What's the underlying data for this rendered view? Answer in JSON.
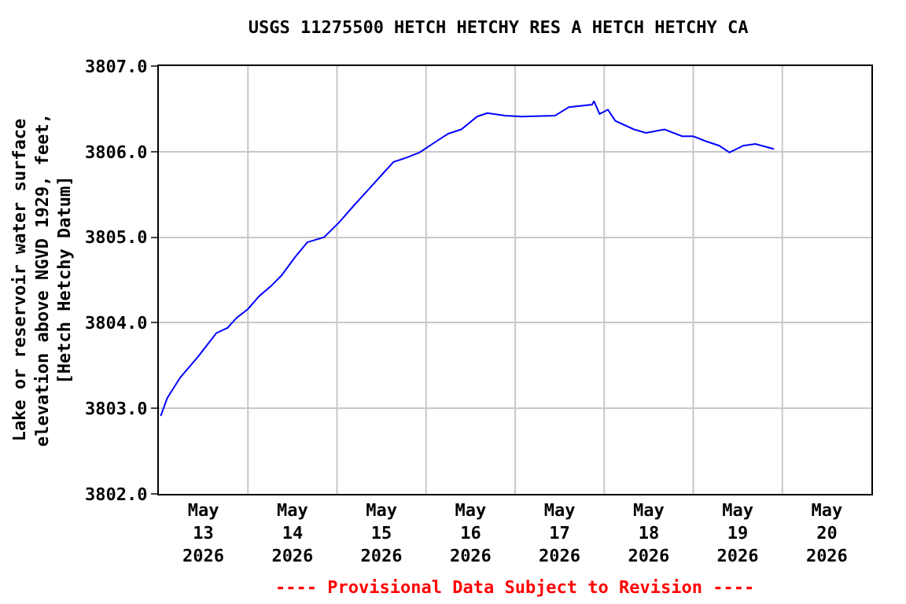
{
  "chart_data": {
    "type": "line",
    "title": "USGS 11275500 HETCH HETCHY RES A HETCH HETCHY CA",
    "ylabel": "Lake or reservoir water surface elevation above NGVD 1929, feet, [Hetch Hetchy Datum]",
    "annotations": [
      "---- Provisional Data Subject to Revision ----"
    ],
    "x": [
      "2026-05-13T00:30",
      "2026-05-13T02:15",
      "2026-05-13T05:45",
      "2026-05-13T10:30",
      "2026-05-13T15:30",
      "2026-05-13T18:30",
      "2026-05-13T21:00",
      "2026-05-14T00:00",
      "2026-05-14T03:00",
      "2026-05-14T06:15",
      "2026-05-14T09:00",
      "2026-05-14T12:45",
      "2026-05-14T16:00",
      "2026-05-14T20:30",
      "2026-05-15T00:30",
      "2026-05-15T04:45",
      "2026-05-15T08:45",
      "2026-05-15T12:30",
      "2026-05-15T15:15",
      "2026-05-15T18:45",
      "2026-05-15T22:15",
      "2026-05-16T02:45",
      "2026-05-16T06:00",
      "2026-05-16T09:30",
      "2026-05-16T13:45",
      "2026-05-16T16:30",
      "2026-05-16T21:15",
      "2026-05-17T01:45",
      "2026-05-17T10:45",
      "2026-05-17T14:30",
      "2026-05-17T20:45",
      "2026-05-17T21:15",
      "2026-05-17T22:45",
      "2026-05-18T01:00",
      "2026-05-18T03:00",
      "2026-05-18T08:00",
      "2026-05-18T11:15",
      "2026-05-18T16:15",
      "2026-05-18T21:00",
      "2026-05-19T00:00",
      "2026-05-19T03:30",
      "2026-05-19T07:00",
      "2026-05-19T09:45",
      "2026-05-19T13:30",
      "2026-05-19T16:45",
      "2026-05-19T21:45"
    ],
    "series": [
      {
        "color": "#0000ff",
        "values": [
          3802.91,
          3803.12,
          3803.36,
          3803.6,
          3803.88,
          3803.94,
          3804.06,
          3804.16,
          3804.31,
          3804.43,
          3804.55,
          3804.77,
          3804.94,
          3805.0,
          3805.17,
          3805.38,
          3805.57,
          3805.75,
          3805.88,
          3805.93,
          3805.99,
          3806.12,
          3806.21,
          3806.26,
          3806.41,
          3806.45,
          3806.42,
          3806.41,
          3806.42,
          3806.52,
          3806.55,
          3806.59,
          3806.44,
          3806.49,
          3806.36,
          3806.26,
          3806.22,
          3806.26,
          3806.18,
          3806.18,
          3806.12,
          3806.07,
          3805.99,
          3806.07,
          3806.09,
          3806.03
        ]
      }
    ],
    "xlim": [
      "2026-05-13T00:00",
      "2026-05-21T00:00"
    ],
    "xticks": [
      {
        "value": "2026-05-13T12:00",
        "label": "May\n13\n2026"
      },
      {
        "value": "2026-05-14T12:00",
        "label": "May\n14\n2026"
      },
      {
        "value": "2026-05-15T12:00",
        "label": "May\n15\n2026"
      },
      {
        "value": "2026-05-16T12:00",
        "label": "May\n16\n2026"
      },
      {
        "value": "2026-05-17T12:00",
        "label": "May\n17\n2026"
      },
      {
        "value": "2026-05-18T12:00",
        "label": "May\n18\n2026"
      },
      {
        "value": "2026-05-19T12:00",
        "label": "May\n19\n2026"
      },
      {
        "value": "2026-05-20T12:00",
        "label": "May\n20\n2026"
      },
      {
        "value": "2026-05-14T00:00",
        "label": null
      },
      {
        "value": "2026-05-15T00:00",
        "label": null
      },
      {
        "value": "2026-05-16T00:00",
        "label": null
      },
      {
        "value": "2026-05-17T00:00",
        "label": null
      },
      {
        "value": "2026-05-18T00:00",
        "label": null
      },
      {
        "value": "2026-05-19T00:00",
        "label": null
      },
      {
        "value": "2026-05-20T00:00",
        "label": null
      }
    ],
    "ylim": [
      3802,
      3807
    ],
    "yticks": [
      {
        "value": 3802,
        "label": "3802.0"
      },
      {
        "value": 3803,
        "label": "3803.0"
      },
      {
        "value": 3804,
        "label": "3804.0"
      },
      {
        "value": 3805,
        "label": "3805.0"
      },
      {
        "value": 3806,
        "label": "3806.0"
      },
      {
        "value": 3807,
        "label": "3807.0"
      }
    ],
    "grid": true,
    "line_style": "solid",
    "marker": "none"
  }
}
